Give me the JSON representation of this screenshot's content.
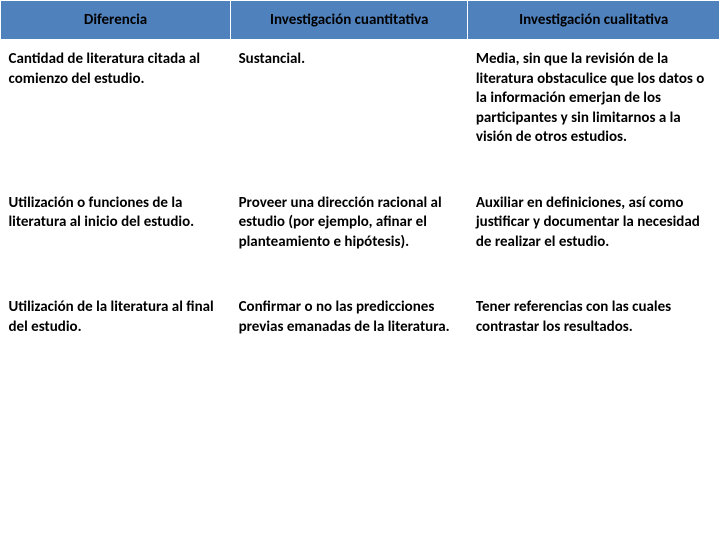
{
  "table": {
    "header_bg": "#4f81bd",
    "header_text_color": "#000000",
    "cell_bg": "#ffffff",
    "cell_text_color": "#000000",
    "font_size_header": 15,
    "font_size_cell": 15,
    "columns": [
      {
        "label": "Diferencia",
        "width_pct": 32
      },
      {
        "label": "Investigación cuantitativa",
        "width_pct": 33
      },
      {
        "label": "Investigación cualitativa",
        "width_pct": 35
      }
    ],
    "rows": [
      {
        "diferencia": "Cantidad de literatura citada al comienzo del estudio.",
        "cuantitativa": "Sustancial.",
        "cualitativa": "Media, sin que la revisión de la literatura obstaculice que los datos o la información emerjan de los participantes y sin limitarnos a la visión de otros estudios."
      },
      {
        "diferencia": "Utilización o funciones de la literatura al inicio del estudio.",
        "cuantitativa": "Proveer una dirección racional al estudio (por ejemplo, afinar el planteamiento e hipótesis).",
        "cualitativa": "Auxiliar en definiciones, así como justificar y documentar la necesidad de realizar el estudio."
      },
      {
        "diferencia": "Utilización de la literatura al final del estudio.",
        "cuantitativa": "Confirmar o no las predicciones previas emanadas de la literatura.",
        "cualitativa": "Tener referencias con las cuales contrastar los resultados."
      }
    ]
  }
}
